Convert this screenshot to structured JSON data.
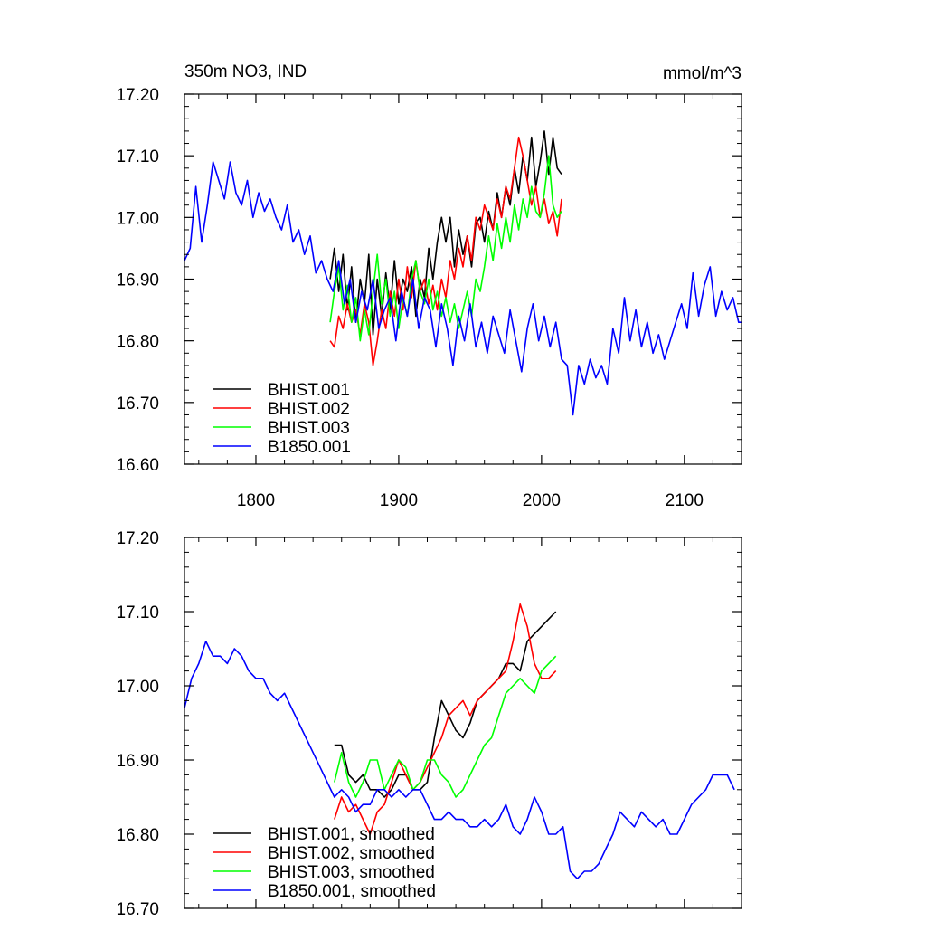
{
  "colors": {
    "BHIST.001": "#000000",
    "BHIST.002": "#ff0000",
    "BHIST.003": "#00ff00",
    "B1850.001": "#0000ff"
  },
  "chart_data": [
    {
      "type": "line",
      "title": "350m NO3, IND",
      "units": "mmol/m^3",
      "xlim": [
        1750,
        2140
      ],
      "ylim": [
        16.6,
        17.2
      ],
      "xticks": [
        1800,
        1900,
        2000,
        2100
      ],
      "xtick_labels": [
        "1800",
        "1900",
        "2000",
        "2100"
      ],
      "yticks": [
        16.6,
        16.7,
        16.8,
        16.9,
        17.0,
        17.1,
        17.2
      ],
      "ytick_labels": [
        "16.60",
        "16.70",
        "16.80",
        "16.90",
        "17.00",
        "17.10",
        "17.20"
      ],
      "legend_position": "bottom-left",
      "legend": [
        "BHIST.001",
        "BHIST.002",
        "BHIST.003",
        "B1850.001"
      ],
      "series": [
        {
          "name": "BHIST.001",
          "color": "#000000",
          "x": [
            1852,
            1855,
            1858,
            1861,
            1864,
            1867,
            1870,
            1873,
            1876,
            1879,
            1882,
            1885,
            1888,
            1891,
            1894,
            1897,
            1900,
            1903,
            1906,
            1909,
            1912,
            1915,
            1918,
            1921,
            1924,
            1927,
            1930,
            1933,
            1936,
            1939,
            1942,
            1945,
            1948,
            1951,
            1954,
            1957,
            1960,
            1963,
            1966,
            1969,
            1972,
            1975,
            1978,
            1981,
            1984,
            1987,
            1990,
            1993,
            1996,
            1999,
            2002,
            2005,
            2008,
            2011,
            2014
          ],
          "y": [
            16.9,
            16.95,
            16.88,
            16.94,
            16.85,
            16.92,
            16.83,
            16.9,
            16.86,
            16.94,
            16.81,
            16.9,
            16.84,
            16.91,
            16.85,
            16.93,
            16.86,
            16.9,
            16.88,
            16.92,
            16.84,
            16.9,
            16.87,
            16.95,
            16.9,
            16.96,
            17.0,
            16.96,
            17.0,
            16.92,
            16.98,
            16.94,
            16.97,
            16.92,
            16.99,
            17.0,
            16.96,
            17.01,
            16.98,
            17.04,
            17.0,
            17.05,
            17.02,
            17.08,
            17.04,
            17.1,
            17.06,
            17.13,
            17.05,
            17.09,
            17.14,
            17.07,
            17.13,
            17.08,
            17.07
          ]
        },
        {
          "name": "BHIST.002",
          "color": "#ff0000",
          "x": [
            1852,
            1855,
            1858,
            1861,
            1864,
            1867,
            1870,
            1873,
            1876,
            1879,
            1882,
            1885,
            1888,
            1891,
            1894,
            1897,
            1900,
            1903,
            1906,
            1909,
            1912,
            1915,
            1918,
            1921,
            1924,
            1927,
            1930,
            1933,
            1936,
            1939,
            1942,
            1945,
            1948,
            1951,
            1954,
            1957,
            1960,
            1963,
            1966,
            1969,
            1972,
            1975,
            1978,
            1981,
            1984,
            1987,
            1990,
            1993,
            1996,
            1999,
            2002,
            2005,
            2008,
            2011,
            2014
          ],
          "y": [
            16.8,
            16.79,
            16.84,
            16.82,
            16.86,
            16.83,
            16.85,
            16.81,
            16.86,
            16.83,
            16.76,
            16.8,
            16.85,
            16.82,
            16.88,
            16.84,
            16.9,
            16.85,
            16.92,
            16.87,
            16.93,
            16.88,
            16.9,
            16.86,
            16.89,
            16.85,
            16.9,
            16.87,
            16.93,
            16.9,
            16.95,
            16.92,
            16.97,
            16.93,
            17.0,
            16.98,
            17.02,
            17.0,
            16.98,
            17.03,
            17.0,
            17.05,
            17.03,
            17.08,
            17.13,
            17.1,
            17.06,
            17.02,
            17.05,
            17.0,
            17.03,
            16.99,
            17.01,
            16.97,
            17.03
          ]
        },
        {
          "name": "BHIST.003",
          "color": "#00ff00",
          "x": [
            1852,
            1855,
            1858,
            1861,
            1864,
            1867,
            1870,
            1873,
            1876,
            1879,
            1882,
            1885,
            1888,
            1891,
            1894,
            1897,
            1900,
            1903,
            1906,
            1909,
            1912,
            1915,
            1918,
            1921,
            1924,
            1927,
            1930,
            1933,
            1936,
            1939,
            1942,
            1945,
            1948,
            1951,
            1954,
            1957,
            1960,
            1963,
            1966,
            1969,
            1972,
            1975,
            1978,
            1981,
            1984,
            1987,
            1990,
            1993,
            1996,
            1999,
            2002,
            2005,
            2008,
            2011,
            2014
          ],
          "y": [
            16.83,
            16.88,
            16.92,
            16.85,
            16.89,
            16.83,
            16.87,
            16.8,
            16.85,
            16.81,
            16.88,
            16.94,
            16.86,
            16.9,
            16.84,
            16.88,
            16.82,
            16.87,
            16.84,
            16.9,
            16.93,
            16.88,
            16.86,
            16.9,
            16.85,
            16.88,
            16.84,
            16.87,
            16.83,
            16.86,
            16.82,
            16.85,
            16.88,
            16.84,
            16.9,
            16.88,
            16.92,
            16.97,
            16.93,
            16.99,
            16.95,
            17.0,
            16.96,
            17.02,
            16.98,
            17.03,
            17.0,
            17.05,
            17.01,
            17.0,
            17.04,
            17.1,
            17.02,
            17.0,
            17.01
          ]
        },
        {
          "name": "B1850.001",
          "color": "#0000ff",
          "x": [
            1750,
            1754,
            1758,
            1762,
            1766,
            1770,
            1774,
            1778,
            1782,
            1786,
            1790,
            1794,
            1798,
            1802,
            1806,
            1810,
            1814,
            1818,
            1822,
            1826,
            1830,
            1834,
            1838,
            1842,
            1846,
            1850,
            1854,
            1858,
            1862,
            1866,
            1870,
            1874,
            1878,
            1882,
            1886,
            1890,
            1894,
            1898,
            1902,
            1906,
            1910,
            1914,
            1918,
            1922,
            1926,
            1930,
            1934,
            1938,
            1942,
            1946,
            1950,
            1954,
            1958,
            1962,
            1966,
            1970,
            1974,
            1978,
            1982,
            1986,
            1990,
            1994,
            1998,
            2002,
            2006,
            2010,
            2014,
            2018,
            2022,
            2026,
            2030,
            2034,
            2038,
            2042,
            2046,
            2050,
            2054,
            2058,
            2062,
            2066,
            2070,
            2074,
            2078,
            2082,
            2086,
            2090,
            2094,
            2098,
            2102,
            2106,
            2110,
            2114,
            2118,
            2122,
            2126,
            2130,
            2134,
            2138,
            2140
          ],
          "y": [
            16.93,
            16.95,
            17.05,
            16.96,
            17.02,
            17.09,
            17.06,
            17.03,
            17.09,
            17.04,
            17.02,
            17.06,
            17.0,
            17.04,
            17.01,
            17.03,
            17.0,
            16.98,
            17.02,
            16.96,
            16.98,
            16.94,
            16.97,
            16.91,
            16.93,
            16.9,
            16.88,
            16.93,
            16.86,
            16.9,
            16.83,
            16.88,
            16.85,
            16.9,
            16.82,
            16.85,
            16.87,
            16.8,
            16.88,
            16.84,
            16.9,
            16.82,
            16.87,
            16.85,
            16.79,
            16.86,
            16.82,
            16.76,
            16.84,
            16.8,
            16.86,
            16.79,
            16.83,
            16.78,
            16.84,
            16.81,
            16.78,
            16.85,
            16.8,
            16.75,
            16.82,
            16.86,
            16.8,
            16.84,
            16.79,
            16.83,
            16.77,
            16.76,
            16.68,
            16.76,
            16.73,
            16.77,
            16.74,
            16.76,
            16.73,
            16.82,
            16.78,
            16.87,
            16.8,
            16.85,
            16.79,
            16.83,
            16.78,
            16.81,
            16.77,
            16.8,
            16.83,
            16.86,
            16.82,
            16.91,
            16.84,
            16.89,
            16.92,
            16.84,
            16.88,
            16.85,
            16.87,
            16.83,
            16.83
          ]
        }
      ]
    },
    {
      "type": "line",
      "xlim": [
        1750,
        2140
      ],
      "ylim": [
        16.7,
        17.2
      ],
      "xticks": [
        1800,
        1900,
        2000,
        2100
      ],
      "yticks": [
        16.7,
        16.8,
        16.9,
        17.0,
        17.1,
        17.2
      ],
      "ytick_labels": [
        "16.70",
        "16.80",
        "16.90",
        "17.00",
        "17.10",
        "17.20"
      ],
      "legend_position": "bottom-left",
      "legend": [
        "BHIST.001, smoothed",
        "BHIST.002, smoothed",
        "BHIST.003, smoothed",
        "B1850.001, smoothed"
      ],
      "series": [
        {
          "name": "BHIST.001, smoothed",
          "color": "#000000",
          "x": [
            1855,
            1860,
            1865,
            1870,
            1875,
            1880,
            1885,
            1890,
            1895,
            1900,
            1905,
            1910,
            1915,
            1920,
            1925,
            1930,
            1935,
            1940,
            1945,
            1950,
            1955,
            1960,
            1965,
            1970,
            1975,
            1980,
            1985,
            1990,
            1995,
            2000,
            2005,
            2010
          ],
          "y": [
            16.92,
            16.92,
            16.88,
            16.87,
            16.88,
            16.86,
            16.86,
            16.85,
            16.86,
            16.88,
            16.88,
            16.86,
            16.86,
            16.87,
            16.93,
            16.98,
            16.96,
            16.94,
            16.93,
            16.95,
            16.98,
            16.99,
            17.0,
            17.01,
            17.03,
            17.03,
            17.02,
            17.06,
            17.07,
            17.08,
            17.09,
            17.1
          ]
        },
        {
          "name": "BHIST.002, smoothed",
          "color": "#ff0000",
          "x": [
            1855,
            1860,
            1865,
            1870,
            1875,
            1880,
            1885,
            1890,
            1895,
            1900,
            1905,
            1910,
            1915,
            1920,
            1925,
            1930,
            1935,
            1940,
            1945,
            1950,
            1955,
            1960,
            1965,
            1970,
            1975,
            1980,
            1985,
            1990,
            1995,
            2000,
            2005,
            2010
          ],
          "y": [
            16.82,
            16.85,
            16.83,
            16.84,
            16.82,
            16.8,
            16.83,
            16.84,
            16.87,
            16.9,
            16.88,
            16.86,
            16.87,
            16.89,
            16.91,
            16.93,
            16.96,
            16.97,
            16.98,
            16.96,
            16.98,
            16.99,
            17.0,
            17.01,
            17.02,
            17.06,
            17.11,
            17.08,
            17.03,
            17.01,
            17.01,
            17.02
          ]
        },
        {
          "name": "BHIST.003, smoothed",
          "color": "#00ff00",
          "x": [
            1855,
            1860,
            1865,
            1870,
            1875,
            1880,
            1885,
            1890,
            1895,
            1900,
            1905,
            1910,
            1915,
            1920,
            1925,
            1930,
            1935,
            1940,
            1945,
            1950,
            1955,
            1960,
            1965,
            1970,
            1975,
            1980,
            1985,
            1990,
            1995,
            2000,
            2005,
            2010
          ],
          "y": [
            16.87,
            16.91,
            16.87,
            16.85,
            16.87,
            16.9,
            16.9,
            16.86,
            16.88,
            16.9,
            16.89,
            16.86,
            16.87,
            16.9,
            16.9,
            16.88,
            16.87,
            16.85,
            16.86,
            16.88,
            16.9,
            16.92,
            16.93,
            16.96,
            16.99,
            17.0,
            17.01,
            17.0,
            16.99,
            17.02,
            17.03,
            17.04
          ]
        },
        {
          "name": "B1850.001, smoothed",
          "color": "#0000ff",
          "x": [
            1750,
            1755,
            1760,
            1765,
            1770,
            1775,
            1780,
            1785,
            1790,
            1795,
            1800,
            1805,
            1810,
            1815,
            1820,
            1825,
            1830,
            1835,
            1840,
            1845,
            1850,
            1855,
            1860,
            1865,
            1870,
            1875,
            1880,
            1885,
            1890,
            1895,
            1900,
            1905,
            1910,
            1915,
            1920,
            1925,
            1930,
            1935,
            1940,
            1945,
            1950,
            1955,
            1960,
            1965,
            1970,
            1975,
            1980,
            1985,
            1990,
            1995,
            2000,
            2005,
            2010,
            2015,
            2020,
            2025,
            2030,
            2035,
            2040,
            2045,
            2050,
            2055,
            2060,
            2065,
            2070,
            2075,
            2080,
            2085,
            2090,
            2095,
            2100,
            2105,
            2110,
            2115,
            2120,
            2125,
            2130,
            2135
          ],
          "y": [
            16.97,
            17.01,
            17.03,
            17.06,
            17.04,
            17.04,
            17.03,
            17.05,
            17.04,
            17.02,
            17.01,
            17.01,
            16.99,
            16.98,
            16.99,
            16.97,
            16.95,
            16.93,
            16.91,
            16.89,
            16.87,
            16.85,
            16.86,
            16.85,
            16.83,
            16.84,
            16.84,
            16.86,
            16.86,
            16.85,
            16.86,
            16.85,
            16.86,
            16.86,
            16.84,
            16.82,
            16.82,
            16.83,
            16.82,
            16.82,
            16.81,
            16.81,
            16.82,
            16.81,
            16.82,
            16.84,
            16.81,
            16.8,
            16.82,
            16.85,
            16.83,
            16.8,
            16.8,
            16.81,
            16.75,
            16.74,
            16.75,
            16.75,
            16.76,
            16.78,
            16.8,
            16.83,
            16.82,
            16.81,
            16.83,
            16.82,
            16.81,
            16.82,
            16.8,
            16.8,
            16.82,
            16.84,
            16.85,
            16.86,
            16.88,
            16.88,
            16.88,
            16.86
          ]
        }
      ]
    }
  ]
}
